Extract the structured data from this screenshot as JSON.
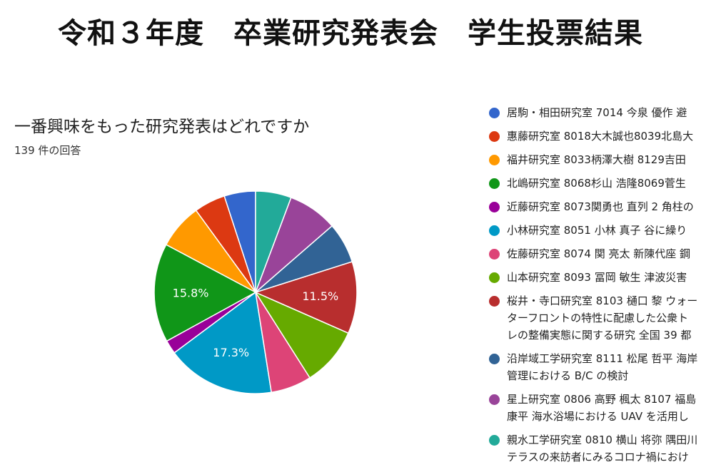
{
  "page": {
    "title": "令和３年度　卒業研究発表会　学生投票結果"
  },
  "chart_data": {
    "type": "pie",
    "title": "一番興味をもった研究発表はどれですか",
    "subtitle": "139 件の回答",
    "slices": [
      {
        "label": "居駒・相田研究室 7014 今泉 優作 避",
        "value": 5.0,
        "color": "#3366cc"
      },
      {
        "label": "惠藤研究室 8018大木誠也8039北島大",
        "value": 5.0,
        "color": "#dc3912"
      },
      {
        "label": "福井研究室 8033柄澤大樹 8129吉田",
        "value": 7.2,
        "color": "#ff9900"
      },
      {
        "label": "北嶋研究室 8068杉山 浩隆8069菅生",
        "value": 15.8,
        "color": "#109618"
      },
      {
        "label": "近藤研究室 8073関勇也 直列 2 角柱の",
        "value": 2.2,
        "color": "#990099"
      },
      {
        "label": "小林研究室 8051 小林 真子 谷に繰り",
        "value": 17.3,
        "color": "#0099c6"
      },
      {
        "label": "佐藤研究室 8074 関 亮太 新陳代座 鋼",
        "value": 6.5,
        "color": "#dd4477"
      },
      {
        "label": "山本研究室 8093 冨岡 敏生 津波災害",
        "value": 9.4,
        "color": "#66aa00"
      },
      {
        "label": "桜井・寺口研究室 8103 樋口 黎 ウォー\nターフロントの特性に配慮した公衆ト\nレの整備実態に関する研究 全国 39 都",
        "value": 11.5,
        "color": "#b82e2e"
      },
      {
        "label": "沿岸域工学研究室 8111 松尾 哲平 海岸\n管理における B/C の検討",
        "value": 6.5,
        "color": "#316395"
      },
      {
        "label": "星上研究室 0806 高野 楓太 8107 福島\n康平 海水浴場における UAV を活用し",
        "value": 7.9,
        "color": "#994499"
      },
      {
        "label": "親水工学研究室 0810 横山 将弥 隅田川\nテラスの来訪者にみるコロナ禍におけ",
        "value": 5.7,
        "color": "#22aa99"
      }
    ],
    "data_labels": [
      "11.5%",
      "17.3%",
      "15.8%"
    ]
  }
}
